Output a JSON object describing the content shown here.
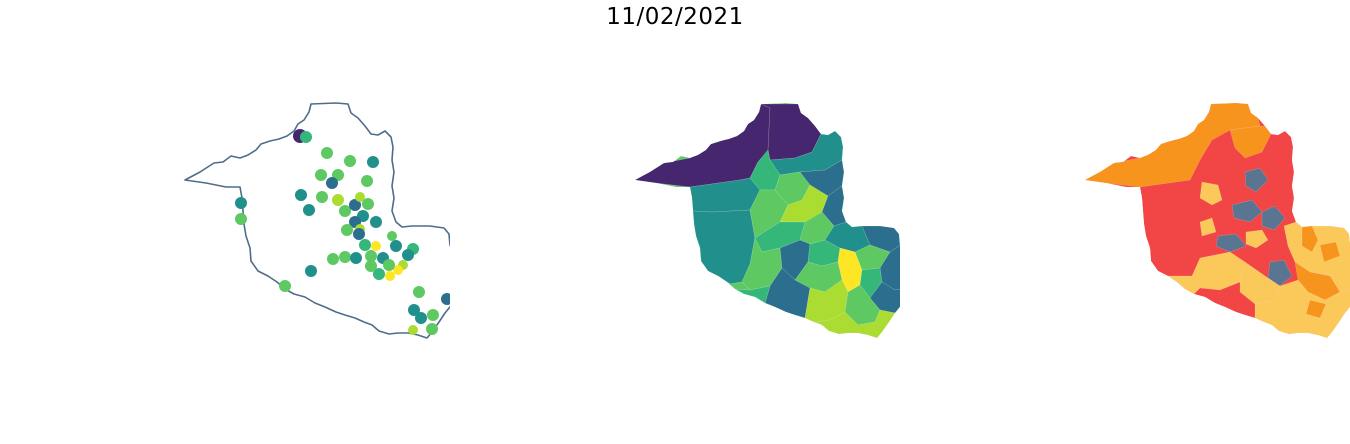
{
  "figure": {
    "title": "11/02/2021"
  },
  "colors": {
    "outline": "#4f6d8a",
    "viridis_dark": "#46266f",
    "viridis_teal_dark": "#2c6e8e",
    "viridis_teal": "#21908d",
    "viridis_green": "#35b779",
    "viridis_lightgreen": "#5ec962",
    "viridis_yellowgreen": "#aadc32",
    "viridis_yellow": "#fde725",
    "risk_orange": "#f7941d",
    "risk_red": "#f24545",
    "risk_yellow": "#fbc85a",
    "risk_slate": "#5a7591"
  },
  "panels": [
    {
      "name": "points-map",
      "type": "point map",
      "legend": "none",
      "axes": "off"
    },
    {
      "name": "viridis-choropleth",
      "type": "choropleth",
      "legend": "none",
      "axes": "off"
    },
    {
      "name": "risk-choropleth",
      "type": "choropleth",
      "legend": "none",
      "axes": "off"
    }
  ],
  "points": [
    {
      "c": "viridis_dark"
    },
    {
      "c": "viridis_green"
    },
    {
      "c": "viridis_lightgreen"
    },
    {
      "c": "viridis_lightgreen"
    },
    {
      "c": "viridis_teal"
    },
    {
      "c": "viridis_lightgreen"
    },
    {
      "c": "viridis_lightgreen"
    },
    {
      "c": "viridis_teal_dark"
    },
    {
      "c": "viridis_lightgreen"
    },
    {
      "c": "viridis_teal"
    },
    {
      "c": "viridis_lightgreen"
    },
    {
      "c": "viridis_yellowgreen"
    },
    {
      "c": "viridis_lightgreen"
    },
    {
      "c": "viridis_teal_dark"
    },
    {
      "c": "viridis_lightgreen"
    },
    {
      "c": "viridis_yellowgreen"
    },
    {
      "c": "viridis_teal"
    },
    {
      "c": "viridis_teal"
    },
    {
      "c": "viridis_teal"
    },
    {
      "c": "viridis_lightgreen"
    },
    {
      "c": "viridis_teal"
    },
    {
      "c": "viridis_teal_dark"
    },
    {
      "c": "viridis_lightgreen"
    },
    {
      "c": "viridis_yellowgreen"
    },
    {
      "c": "viridis_teal_dark"
    },
    {
      "c": "viridis_green"
    },
    {
      "c": "viridis_yellow"
    },
    {
      "c": "viridis_lightgreen"
    },
    {
      "c": "viridis_green"
    },
    {
      "c": "viridis_teal"
    },
    {
      "c": "viridis_teal"
    },
    {
      "c": "viridis_yellowgreen"
    },
    {
      "c": "viridis_teal"
    },
    {
      "c": "viridis_lightgreen"
    },
    {
      "c": "viridis_yellow"
    },
    {
      "c": "viridis_lightgreen"
    },
    {
      "c": "viridis_yellow"
    },
    {
      "c": "viridis_green"
    },
    {
      "c": "viridis_lightgreen"
    },
    {
      "c": "viridis_lightgreen"
    },
    {
      "c": "viridis_teal"
    },
    {
      "c": "viridis_lightgreen"
    },
    {
      "c": "viridis_teal_dark"
    },
    {
      "c": "viridis_lightgreen"
    },
    {
      "c": "viridis_teal"
    },
    {
      "c": "viridis_teal"
    },
    {
      "c": "viridis_lightgreen"
    },
    {
      "c": "viridis_yellowgreen"
    },
    {
      "c": "viridis_lightgreen"
    },
    {
      "c": "viridis_teal"
    },
    {
      "c": "viridis_lightgreen"
    }
  ],
  "viridis_regions": [
    {
      "c": "viridis_teal"
    },
    {
      "c": "viridis_teal"
    },
    {
      "c": "viridis_green"
    },
    {
      "c": "viridis_lightgreen"
    },
    {
      "c": "viridis_lightgreen"
    },
    {
      "c": "viridis_teal_dark"
    },
    {
      "c": "viridis_lightgreen"
    },
    {
      "c": "viridis_yellowgreen"
    },
    {
      "c": "viridis_teal_dark"
    },
    {
      "c": "viridis_green"
    },
    {
      "c": "viridis_lightgreen"
    },
    {
      "c": "viridis_lightgreen"
    },
    {
      "c": "viridis_teal_dark"
    },
    {
      "c": "viridis_green"
    },
    {
      "c": "viridis_teal"
    },
    {
      "c": "viridis_yellow"
    },
    {
      "c": "viridis_lightgreen"
    },
    {
      "c": "viridis_yellowgreen"
    },
    {
      "c": "viridis_teal"
    },
    {
      "c": "viridis_yellowgreen"
    },
    {
      "c": "viridis_lightgreen"
    },
    {
      "c": "viridis_green"
    },
    {
      "c": "viridis_yellowgreen"
    },
    {
      "c": "viridis_teal_dark"
    },
    {
      "c": "viridis_green"
    },
    {
      "c": "viridis_lightgreen"
    },
    {
      "c": "viridis_teal"
    }
  ],
  "risk_regions": [
    {
      "c": "risk_red"
    },
    {
      "c": "risk_red"
    },
    {
      "c": "risk_orange"
    },
    {
      "c": "risk_slate"
    },
    {
      "c": "risk_orange"
    },
    {
      "c": "risk_yellow"
    },
    {
      "c": "risk_slate"
    },
    {
      "c": "risk_slate"
    },
    {
      "c": "risk_yellow"
    },
    {
      "c": "risk_slate"
    },
    {
      "c": "risk_slate"
    },
    {
      "c": "risk_yellow"
    },
    {
      "c": "risk_slate"
    },
    {
      "c": "risk_orange"
    },
    {
      "c": "risk_orange"
    },
    {
      "c": "risk_yellow"
    },
    {
      "c": "risk_yellow"
    },
    {
      "c": "risk_red"
    },
    {
      "c": "risk_red"
    },
    {
      "c": "risk_slate"
    },
    {
      "c": "risk_slate"
    }
  ]
}
